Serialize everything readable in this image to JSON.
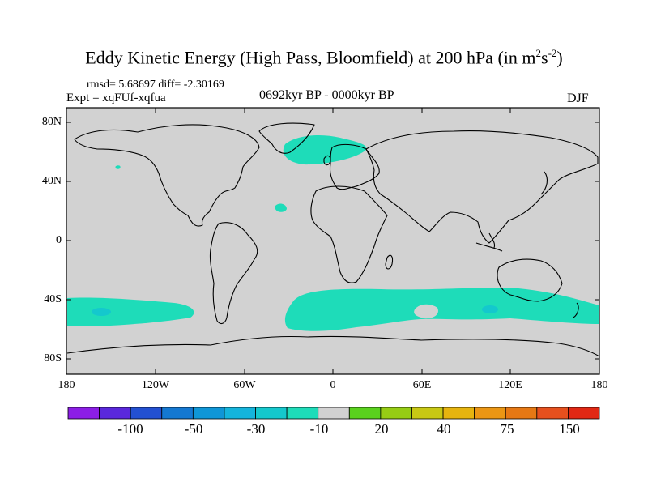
{
  "title": {
    "main": "Eddy Kinetic Energy (High Pass, Bloomfield) at 200 hPa (in m",
    "sup1": "2",
    "mid": "s",
    "sup2": "-2",
    "end": ")"
  },
  "stats": "rmsd= 5.68697  diff= -2.30169",
  "expt": "Expt = xqFUf-xqfua",
  "period": "0692kyr BP - 0000kyr BP",
  "season": "DJF",
  "lat_labels": [
    "80N",
    "40N",
    "0",
    "40S",
    "80S"
  ],
  "lon_labels": [
    "180",
    "120W",
    "60W",
    "0",
    "60E",
    "120E",
    "180"
  ],
  "colorbar": {
    "colors": [
      "#8c1ee6",
      "#5a28dc",
      "#2350d2",
      "#1478d2",
      "#0f96d7",
      "#14b4dc",
      "#14c8cd",
      "#1edcb9",
      "#d2d2d2",
      "#5ad21e",
      "#96cd14",
      "#c8c814",
      "#e6b40f",
      "#eb9614",
      "#e67814",
      "#e6501e",
      "#e12814"
    ],
    "labels": [
      "-100",
      "-50",
      "-30",
      "-10",
      "20",
      "40",
      "75",
      "150"
    ]
  },
  "colors": {
    "land_ocean": "#d2d2d2",
    "anomaly": "#1edcb9",
    "anomaly_dark": "#14c8cd"
  }
}
